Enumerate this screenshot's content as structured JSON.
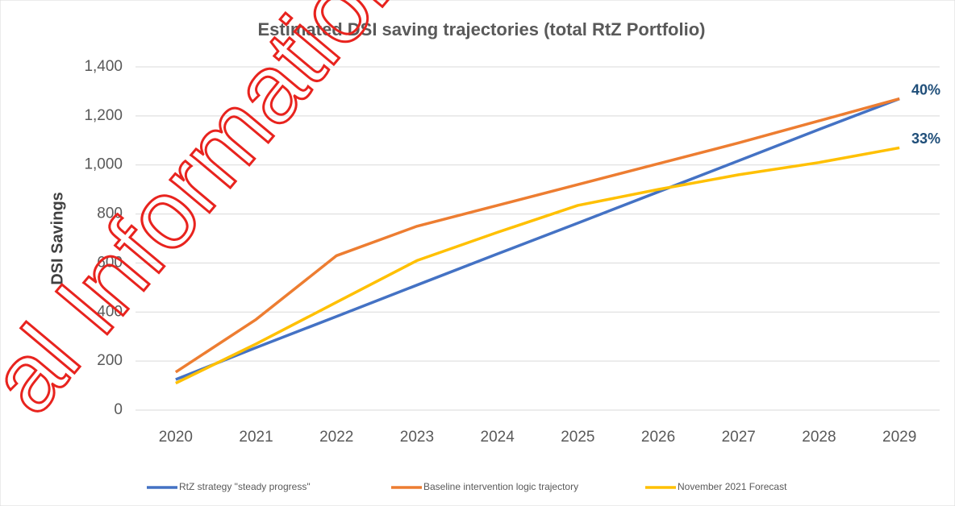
{
  "chart_data": {
    "type": "line",
    "title": "Estimated DSI saving trajectories (total RtZ Portfolio)",
    "y_label": "DSI Savings",
    "categories": [
      "2020",
      "2021",
      "2022",
      "2023",
      "2024",
      "2025",
      "2026",
      "2027",
      "2028",
      "2029"
    ],
    "series": [
      {
        "name": "RtZ strategy \"steady progress\"",
        "color": "#4472c4",
        "values": [
          125,
          255,
          382,
          510,
          637,
          763,
          890,
          1017,
          1145,
          1270
        ]
      },
      {
        "name": "Baseline intervention logic trajectory",
        "color": "#ed7d31",
        "values": [
          155,
          370,
          630,
          750,
          835,
          920,
          1005,
          1090,
          1180,
          1270
        ]
      },
      {
        "name": "November 2021 Forecast",
        "color": "#ffc000",
        "values": [
          110,
          270,
          440,
          610,
          725,
          835,
          900,
          960,
          1010,
          1070
        ]
      }
    ],
    "annotations": [
      "40%",
      "33%"
    ],
    "watermark": "al Information A",
    "ylim": [
      0,
      1400
    ],
    "yticks": [
      0,
      200,
      400,
      600,
      800,
      {
        "value": 1000,
        "label": "1,000"
      },
      {
        "value": 1200,
        "label": "1,200"
      },
      {
        "value": 1400,
        "label": "1,400"
      }
    ],
    "grid": true,
    "legend": "bottom"
  }
}
